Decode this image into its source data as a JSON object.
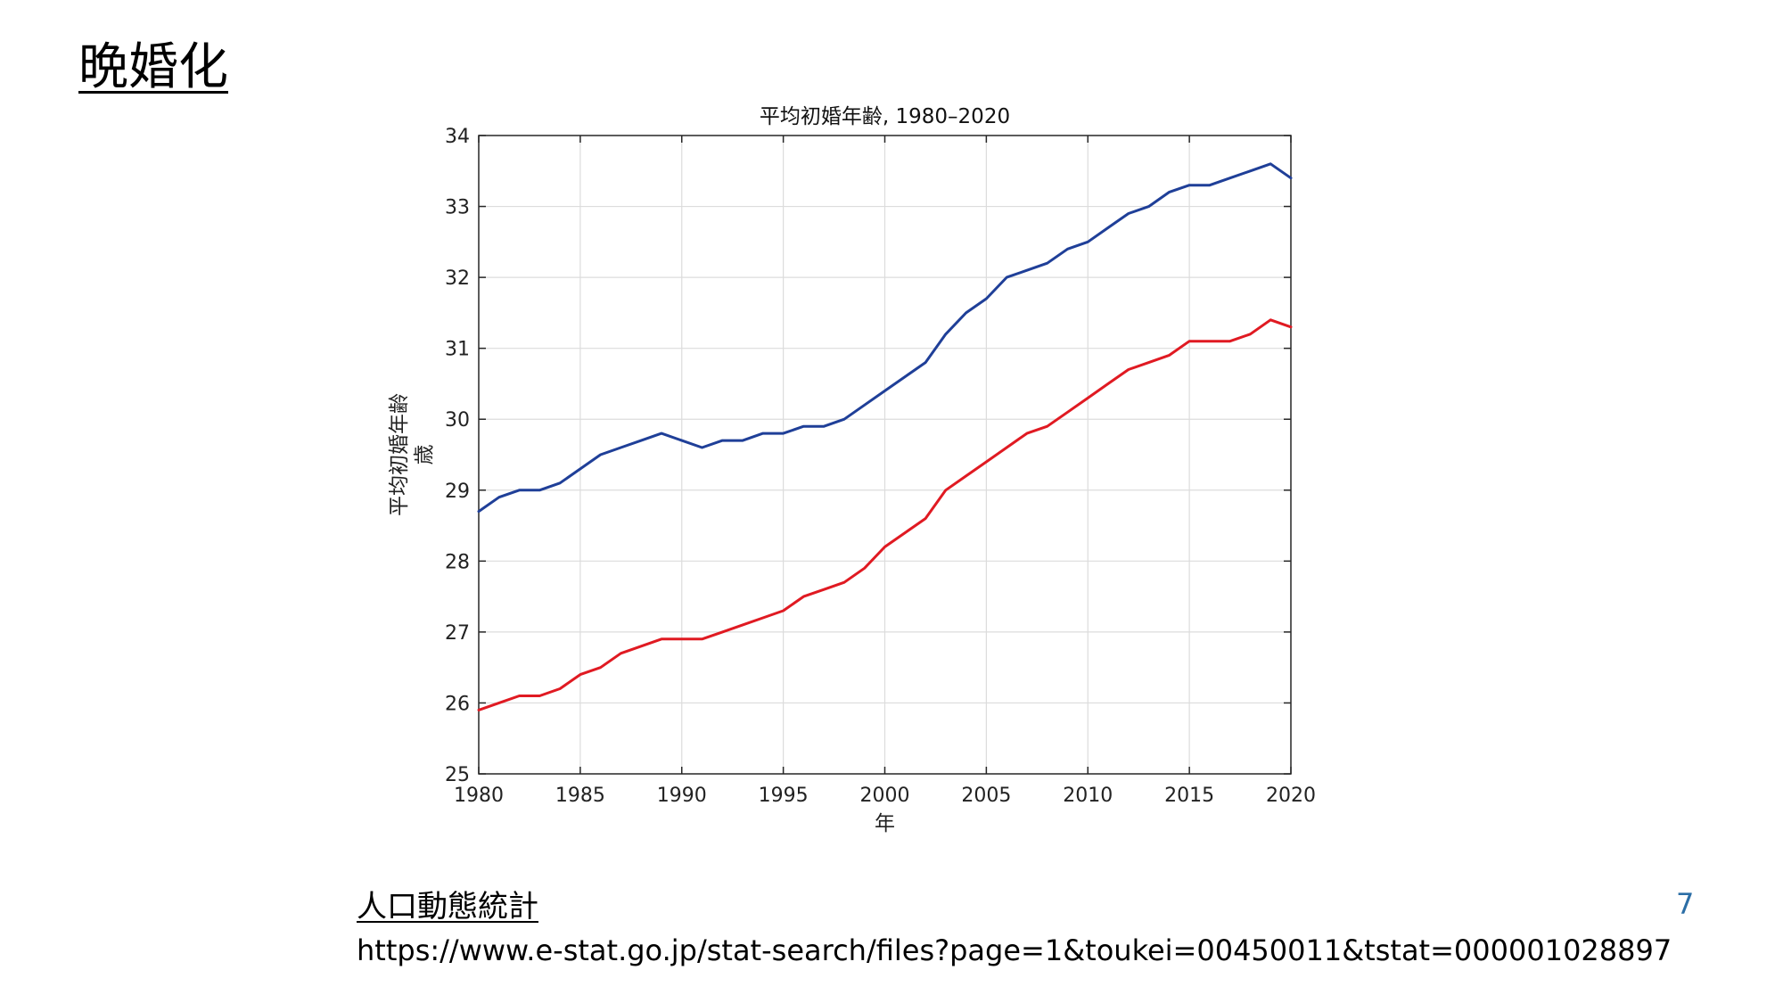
{
  "slide": {
    "title": "晩婚化",
    "page_number": "7"
  },
  "source": {
    "title": "人口動態統計",
    "url": "https://www.e-stat.go.jp/stat-search/files?page=1&toukei=00450011&tstat=000001028897"
  },
  "colors": {
    "series_1": "#1f3f98",
    "series_2": "#e01a22",
    "grid": "#dcdcdc",
    "axis": "#262626",
    "page_number": "#2b6ea6"
  },
  "chart_data": {
    "type": "line",
    "title": "平均初婚年齢, 1980–2020",
    "xlabel": "年",
    "ylabel": "平均初婚年齢\n歳",
    "xlim": [
      1980,
      2020
    ],
    "ylim": [
      25,
      34
    ],
    "xticks": [
      1980,
      1985,
      1990,
      1995,
      2000,
      2005,
      2010,
      2015,
      2020
    ],
    "yticks": [
      25,
      26,
      27,
      28,
      29,
      30,
      31,
      32,
      33,
      34
    ],
    "grid": true,
    "x": [
      1980,
      1981,
      1982,
      1983,
      1984,
      1985,
      1986,
      1987,
      1988,
      1989,
      1990,
      1991,
      1992,
      1993,
      1994,
      1995,
      1996,
      1997,
      1998,
      1999,
      2000,
      2001,
      2002,
      2003,
      2004,
      2005,
      2006,
      2007,
      2008,
      2009,
      2010,
      2011,
      2012,
      2013,
      2014,
      2015,
      2016,
      2017,
      2018,
      2019,
      2020
    ],
    "series": [
      {
        "color": "#1f3f98",
        "values": [
          28.7,
          28.9,
          29.0,
          29.0,
          29.1,
          29.3,
          29.5,
          29.6,
          29.7,
          29.8,
          29.7,
          29.6,
          29.7,
          29.7,
          29.8,
          29.8,
          29.9,
          29.9,
          30.0,
          30.2,
          30.4,
          30.6,
          30.8,
          31.2,
          31.5,
          31.7,
          32.0,
          32.1,
          32.2,
          32.4,
          32.5,
          32.7,
          32.9,
          33.0,
          33.2,
          33.3,
          33.3,
          33.4,
          33.5,
          33.6,
          33.4
        ]
      },
      {
        "color": "#e01a22",
        "values": [
          25.9,
          26.0,
          26.1,
          26.1,
          26.2,
          26.4,
          26.5,
          26.7,
          26.8,
          26.9,
          26.9,
          26.9,
          27.0,
          27.1,
          27.2,
          27.3,
          27.5,
          27.6,
          27.7,
          27.9,
          28.2,
          28.4,
          28.6,
          29.0,
          29.2,
          29.4,
          29.6,
          29.8,
          29.9,
          30.1,
          30.3,
          30.5,
          30.7,
          30.8,
          30.9,
          31.1,
          31.1,
          31.1,
          31.2,
          31.4,
          31.3
        ]
      }
    ]
  }
}
